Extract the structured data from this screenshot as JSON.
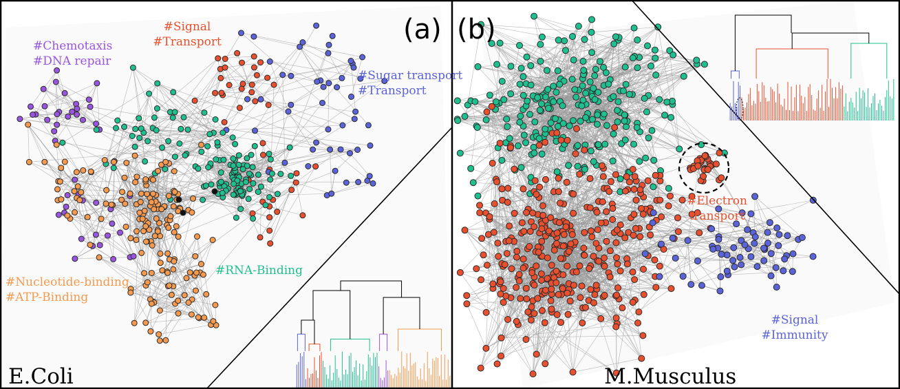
{
  "colors": {
    "purple": "#9a55e0",
    "red": "#e8502f",
    "blue": "#5b63d8",
    "green": "#1fbf8f",
    "orange": "#f59a4f",
    "black": "#111111",
    "edge": "#9a9a9a"
  },
  "panel_a": {
    "letter": "(a)",
    "species": "E.Coli",
    "annotations": [
      {
        "id": "chemotaxis",
        "color": "purple",
        "lines": [
          "#Chemotaxis",
          "#DNA repair"
        ]
      },
      {
        "id": "signal-transport",
        "color": "red",
        "lines": [
          "#Signal",
          "#Transport"
        ]
      },
      {
        "id": "sugar-transport",
        "color": "blue",
        "lines": [
          "#Sugar transport",
          "#Transport"
        ]
      },
      {
        "id": "rna-binding",
        "color": "green",
        "lines": [
          "#RNA-Binding"
        ]
      },
      {
        "id": "nucleotide-binding",
        "color": "orange",
        "lines": [
          "#Nucleotide-binding",
          "#ATP-Binding"
        ]
      }
    ]
  },
  "panel_b": {
    "letter": "(b)",
    "species": "M.Musculus",
    "annotations": [
      {
        "id": "electron-transport",
        "color": "red",
        "lines": [
          "#Electron",
          "transport"
        ]
      },
      {
        "id": "signal-immunity",
        "color": "blue",
        "lines": [
          "#Signal",
          "#Immunity"
        ]
      }
    ]
  }
}
